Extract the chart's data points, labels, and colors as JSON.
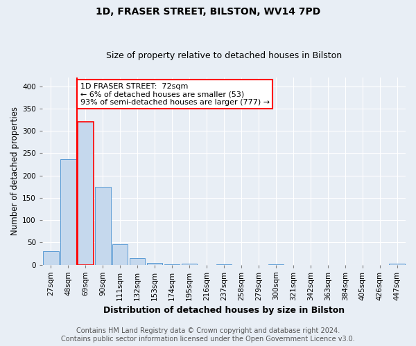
{
  "title": "1D, FRASER STREET, BILSTON, WV14 7PD",
  "subtitle": "Size of property relative to detached houses in Bilston",
  "xlabel": "Distribution of detached houses by size in Bilston",
  "ylabel": "Number of detached properties",
  "footer_line1": "Contains HM Land Registry data © Crown copyright and database right 2024.",
  "footer_line2": "Contains public sector information licensed under the Open Government Licence v3.0.",
  "annotation_line1": "1D FRASER STREET:  72sqm",
  "annotation_line2": "← 6% of detached houses are smaller (53)",
  "annotation_line3": "93% of semi-detached houses are larger (777) →",
  "bar_labels": [
    "27sqm",
    "48sqm",
    "69sqm",
    "90sqm",
    "111sqm",
    "132sqm",
    "153sqm",
    "174sqm",
    "195sqm",
    "216sqm",
    "237sqm",
    "258sqm",
    "279sqm",
    "300sqm",
    "321sqm",
    "342sqm",
    "363sqm",
    "384sqm",
    "405sqm",
    "426sqm",
    "447sqm"
  ],
  "bar_values": [
    30,
    237,
    320,
    175,
    46,
    15,
    4,
    1,
    2,
    0,
    1,
    0,
    0,
    1,
    0,
    0,
    0,
    0,
    0,
    0,
    2
  ],
  "bar_color": "#c5d8ed",
  "bar_edge_color": "#5b9bd5",
  "highlight_bar_index": 2,
  "highlight_bar_edge_color": "#ff0000",
  "annotation_box_edge_color": "#ff0000",
  "background_color": "#e8eef5",
  "plot_bg_color": "#e8eef5",
  "red_line_x": 1.5,
  "ylim": [
    0,
    420
  ],
  "yticks": [
    0,
    50,
    100,
    150,
    200,
    250,
    300,
    350,
    400
  ],
  "title_fontsize": 10,
  "subtitle_fontsize": 9,
  "axis_label_fontsize": 8.5,
  "tick_fontsize": 7.5,
  "annotation_fontsize": 8,
  "footer_fontsize": 7
}
